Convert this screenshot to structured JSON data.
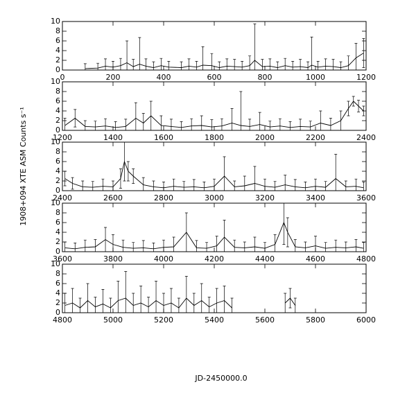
{
  "chart_data": [
    {
      "type": "line",
      "x": [
        90,
        140,
        170,
        200,
        230,
        255,
        280,
        305,
        330,
        360,
        390,
        420,
        470,
        500,
        530,
        555,
        590,
        620,
        650,
        680,
        710,
        740,
        760,
        790,
        820,
        850,
        880,
        910,
        940,
        970,
        985,
        1010,
        1040,
        1070,
        1100,
        1130,
        1160,
        1190
      ],
      "values": [
        0.3,
        0.4,
        0.8,
        0.6,
        0.9,
        1.5,
        0.7,
        1.2,
        0.8,
        0.5,
        0.9,
        0.6,
        0.5,
        0.8,
        0.6,
        1.0,
        0.9,
        0.5,
        0.8,
        0.7,
        0.6,
        0.9,
        2.0,
        0.7,
        0.8,
        0.5,
        0.9,
        0.6,
        0.7,
        0.5,
        1.0,
        0.6,
        0.8,
        0.7,
        0.5,
        0.9,
        2.5,
        3.5
      ],
      "errors": [
        1.0,
        1.0,
        1.5,
        1.2,
        1.5,
        4.5,
        1.5,
        5.5,
        1.5,
        1.2,
        1.5,
        1.2,
        1.2,
        1.5,
        1.2,
        3.8,
        2.5,
        1.2,
        1.5,
        1.5,
        1.2,
        2.0,
        7.5,
        1.5,
        1.5,
        1.2,
        1.5,
        1.2,
        1.5,
        1.2,
        5.8,
        1.2,
        1.5,
        1.5,
        1.2,
        2.0,
        3.0,
        3.0
      ],
      "xlim": [
        0,
        1200
      ],
      "xticks": [
        0,
        200,
        400,
        600,
        800,
        1000,
        1200
      ],
      "ylim": [
        0,
        10
      ],
      "yticks": [
        0,
        2,
        4,
        6,
        8,
        10
      ]
    },
    {
      "type": "line",
      "x": [
        1210,
        1250,
        1290,
        1330,
        1370,
        1410,
        1450,
        1490,
        1520,
        1550,
        1590,
        1630,
        1670,
        1710,
        1750,
        1790,
        1830,
        1870,
        1905,
        1940,
        1980,
        2020,
        2060,
        2100,
        2140,
        2180,
        2220,
        2260,
        2300,
        2330,
        2350,
        2370,
        2390
      ],
      "values": [
        1.0,
        2.5,
        0.8,
        0.7,
        0.9,
        0.6,
        0.8,
        2.5,
        1.5,
        3.0,
        1.0,
        0.8,
        0.6,
        0.9,
        1.0,
        0.7,
        0.9,
        1.5,
        1.0,
        0.8,
        1.2,
        0.7,
        0.9,
        0.6,
        0.8,
        0.7,
        1.5,
        1.0,
        2.0,
        4.5,
        6.0,
        5.0,
        4.0
      ],
      "errors": [
        1.5,
        1.8,
        1.2,
        1.2,
        1.5,
        1.2,
        1.5,
        3.2,
        2.0,
        3.0,
        2.0,
        1.5,
        1.2,
        1.5,
        2.0,
        1.5,
        1.5,
        3.0,
        7.0,
        1.5,
        2.5,
        1.2,
        1.5,
        1.2,
        1.5,
        1.2,
        2.5,
        1.5,
        2.0,
        1.5,
        1.0,
        1.2,
        1.0
      ],
      "xlim": [
        1200,
        2400
      ],
      "xticks": [
        1200,
        1400,
        1600,
        1800,
        2000,
        2200,
        2400
      ],
      "ylim": [
        0,
        10
      ],
      "yticks": [
        0,
        2,
        4,
        6,
        8,
        10
      ]
    },
    {
      "type": "line",
      "ylabel": "1908+094 XTE ASM Counts s⁻¹",
      "x": [
        2410,
        2440,
        2480,
        2520,
        2560,
        2600,
        2630,
        2645,
        2660,
        2680,
        2720,
        2760,
        2800,
        2840,
        2880,
        2920,
        2960,
        3000,
        3040,
        3080,
        3120,
        3160,
        3200,
        3240,
        3280,
        3320,
        3360,
        3400,
        3440,
        3480,
        3520,
        3560,
        3590
      ],
      "values": [
        2.5,
        1.5,
        0.8,
        0.7,
        0.9,
        0.8,
        2.5,
        6.0,
        4.0,
        3.0,
        1.2,
        0.8,
        0.6,
        0.9,
        0.7,
        0.8,
        0.6,
        0.9,
        3.0,
        0.8,
        1.0,
        1.5,
        0.9,
        0.7,
        1.2,
        0.8,
        0.6,
        0.9,
        0.7,
        2.5,
        0.8,
        0.9,
        0.6
      ],
      "errors": [
        1.5,
        1.2,
        1.2,
        1.2,
        1.5,
        1.2,
        2.0,
        4.0,
        2.0,
        1.5,
        1.5,
        1.2,
        1.2,
        1.5,
        1.2,
        1.5,
        1.2,
        1.5,
        4.0,
        1.2,
        2.0,
        3.5,
        1.5,
        1.2,
        2.0,
        1.5,
        1.2,
        1.5,
        1.2,
        5.0,
        1.2,
        1.5,
        1.2
      ],
      "xlim": [
        2400,
        3600
      ],
      "xticks": [
        2400,
        2600,
        2800,
        3000,
        3200,
        3400,
        3600
      ],
      "ylim": [
        0,
        10
      ],
      "yticks": [
        0,
        2,
        4,
        6,
        8,
        10
      ]
    },
    {
      "type": "line",
      "x": [
        3610,
        3650,
        3690,
        3730,
        3770,
        3800,
        3840,
        3880,
        3920,
        3960,
        4000,
        4040,
        4090,
        4130,
        4170,
        4210,
        4240,
        4280,
        4320,
        4360,
        4400,
        4440,
        4475,
        4490,
        4520,
        4560,
        4600,
        4640,
        4680,
        4720,
        4760,
        4790
      ],
      "values": [
        0.8,
        0.6,
        0.9,
        1.0,
        2.5,
        1.5,
        0.9,
        0.7,
        0.8,
        0.6,
        0.9,
        1.0,
        4.0,
        0.8,
        0.7,
        1.2,
        3.0,
        0.9,
        0.8,
        1.0,
        0.7,
        1.5,
        6.0,
        4.0,
        1.0,
        0.8,
        1.2,
        0.7,
        0.9,
        0.8,
        1.0,
        0.7
      ],
      "errors": [
        1.2,
        1.2,
        1.5,
        1.5,
        2.5,
        2.0,
        1.5,
        1.2,
        1.5,
        1.2,
        1.5,
        2.0,
        4.0,
        1.5,
        1.2,
        2.0,
        3.5,
        1.5,
        1.2,
        2.0,
        1.2,
        2.0,
        4.5,
        3.0,
        1.5,
        1.2,
        2.0,
        1.2,
        1.5,
        1.2,
        1.5,
        1.2
      ],
      "xlim": [
        3600,
        4800
      ],
      "xticks": [
        3600,
        3800,
        4000,
        4200,
        4400,
        4600,
        4800
      ],
      "ylim": [
        0,
        10
      ],
      "yticks": [
        0,
        2,
        4,
        6,
        8,
        10
      ]
    },
    {
      "type": "line",
      "xlabel": "JD-2450000.0",
      "x": [
        4810,
        4840,
        4870,
        4900,
        4930,
        4960,
        4990,
        5020,
        5050,
        5080,
        5110,
        5140,
        5170,
        5200,
        5230,
        5260,
        5290,
        5320,
        5350,
        5380,
        5410,
        5440,
        5470,
        5580,
        5680,
        5700,
        5720
      ],
      "values": [
        1.5,
        2.0,
        1.0,
        2.5,
        1.2,
        1.8,
        1.0,
        2.5,
        3.0,
        1.5,
        2.0,
        1.2,
        2.5,
        1.5,
        2.0,
        1.0,
        3.0,
        1.5,
        2.5,
        1.2,
        2.0,
        2.5,
        1.0,
        null,
        2.0,
        3.0,
        1.5
      ],
      "errors": [
        2.5,
        3.0,
        2.0,
        3.5,
        2.0,
        3.0,
        2.0,
        4.0,
        5.5,
        2.5,
        3.5,
        2.0,
        4.0,
        2.5,
        3.0,
        2.0,
        4.5,
        2.5,
        3.5,
        2.0,
        3.0,
        3.0,
        2.0,
        null,
        2.0,
        2.0,
        1.5
      ],
      "xlim": [
        4800,
        6000
      ],
      "xticks": [
        4800,
        5000,
        5200,
        5400,
        5600,
        5800,
        6000
      ],
      "ylim": [
        0,
        10
      ],
      "yticks": [
        0,
        2,
        4,
        6,
        8,
        10
      ]
    }
  ]
}
